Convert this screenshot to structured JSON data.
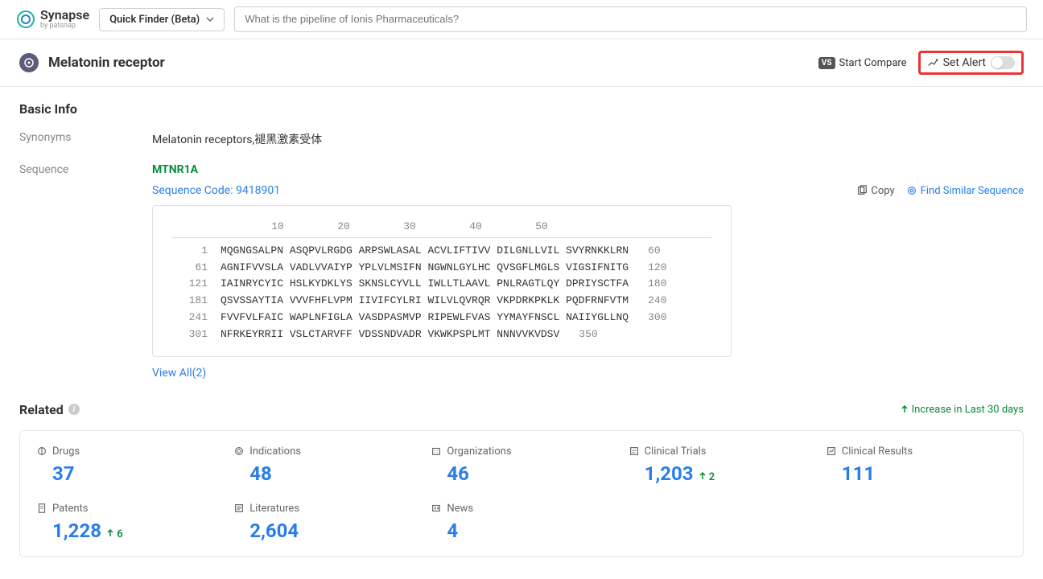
{
  "header": {
    "logo_name": "Synapse",
    "logo_sub": "by patsnap",
    "quick_finder_label": "Quick Finder (Beta)",
    "search_placeholder": "What is the pipeline of Ionis Pharmaceuticals?"
  },
  "page": {
    "title": "Melatonin receptor",
    "start_compare": "Start Compare",
    "set_alert": "Set Alert"
  },
  "basic_info": {
    "section_title": "Basic Info",
    "synonyms_label": "Synonyms",
    "synonyms_value": "Melatonin receptors,褪黑激素受体",
    "sequence_label": "Sequence",
    "gene": "MTNR1A",
    "sequence_code_label": "Sequence Code: 9418901",
    "copy_label": "Copy",
    "find_similar_label": "Find Similar Sequence",
    "ruler": [
      "10",
      "20",
      "30",
      "40",
      "50"
    ],
    "lines": [
      {
        "start": "1",
        "seq": "MQGNGSALPN ASQPVLRGDG ARPSWLASAL ACVLIFTIVV DILGNLLVIL SVYRNKKLRN",
        "end": "60"
      },
      {
        "start": "61",
        "seq": "AGNIFVVSLA VADLVVAIYP YPLVLMSIFN NGWNLGYLHC QVSGFLMGLS VIGSIFNITG",
        "end": "120"
      },
      {
        "start": "121",
        "seq": "IAINRYCYIC HSLKYDKLYS SKNSLCYVLL IWLLTLAAVL PNLRAGTLQY DPRIYSCTFA",
        "end": "180"
      },
      {
        "start": "181",
        "seq": "QSVSSAYTIA VVVFHFLVPM IIVIFCYLRI WILVLQVRQR VKPDRKPKLK PQDFRNFVTM",
        "end": "240"
      },
      {
        "start": "241",
        "seq": "FVVFVLFAIC WAPLNFIGLA VASDPASMVP RIPEWLFVAS YYMAYFNSCL NAIIYGLLNQ",
        "end": "300"
      },
      {
        "start": "301",
        "seq": "NFRKEYRRII VSLCTARVFF VDSSNDVADR VKWKPSPLMT NNNVVKVDSV",
        "end": "350"
      }
    ],
    "view_all": "View All(2)"
  },
  "related": {
    "title": "Related",
    "increase_label": "Increase in Last 30 days",
    "stats": [
      {
        "label": "Drugs",
        "value": "37",
        "inc": null
      },
      {
        "label": "Indications",
        "value": "48",
        "inc": null
      },
      {
        "label": "Organizations",
        "value": "46",
        "inc": null
      },
      {
        "label": "Clinical Trials",
        "value": "1,203",
        "inc": "2"
      },
      {
        "label": "Clinical Results",
        "value": "111",
        "inc": null
      },
      {
        "label": "Patents",
        "value": "1,228",
        "inc": "6"
      },
      {
        "label": "Literatures",
        "value": "2,604",
        "inc": null
      },
      {
        "label": "News",
        "value": "4",
        "inc": null
      }
    ]
  }
}
